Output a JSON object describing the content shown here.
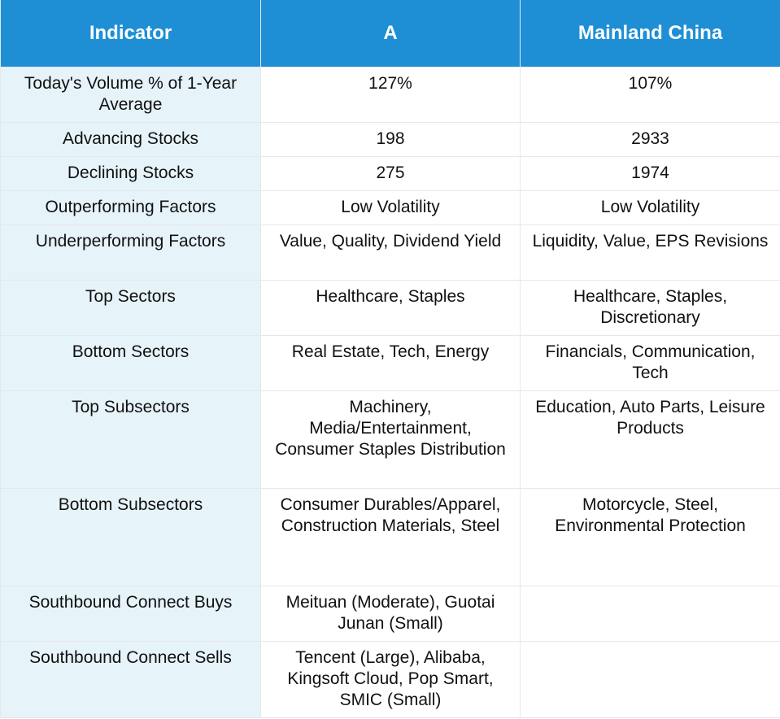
{
  "header": {
    "col1": "Indicator",
    "col2": "A",
    "col3": "Mainland China"
  },
  "rows": [
    {
      "indicator": "Today's Volume % of 1-Year Average",
      "a": "127%",
      "mainland": "107%"
    },
    {
      "indicator": "Advancing Stocks",
      "a": "198",
      "mainland": "2933"
    },
    {
      "indicator": "Declining Stocks",
      "a": "275",
      "mainland": "1974"
    },
    {
      "indicator": "Outperforming Factors",
      "a": "Low Volatility",
      "mainland": "Low Volatility"
    },
    {
      "indicator": "Underperforming Factors",
      "a": "Value, Quality, Dividend Yield",
      "mainland": "Liquidity, Value, EPS Revisions"
    },
    {
      "indicator": "Top Sectors",
      "a": "Healthcare, Staples",
      "mainland": "Healthcare, Staples, Discretionary"
    },
    {
      "indicator": "Bottom Sectors",
      "a": "Real Estate, Tech, Energy",
      "mainland": "Financials, Communication, Tech"
    },
    {
      "indicator": "Top Subsectors",
      "a": "Machinery, Media/Entertainment, Consumer Staples Distribution",
      "mainland": "Education, Auto Parts, Leisure Products"
    },
    {
      "indicator": "Bottom Subsectors",
      "a": "Consumer Durables/Apparel, Construction Materials, Steel",
      "mainland": "Motorcycle, Steel, Environmental Protection"
    },
    {
      "indicator": "Southbound Connect Buys",
      "a": "Meituan (Moderate), Guotai Junan (Small)",
      "mainland": ""
    },
    {
      "indicator": "Southbound Connect Sells",
      "a": "Tencent (Large), Alibaba, Kingsoft Cloud, Pop Smart, SMIC (Small)",
      "mainland": ""
    }
  ],
  "colors": {
    "header_bg": "#1e8fd5",
    "header_text": "#ffffff",
    "label_col_bg": "#e6f3f9",
    "grid_line": "#e4e8ea"
  }
}
